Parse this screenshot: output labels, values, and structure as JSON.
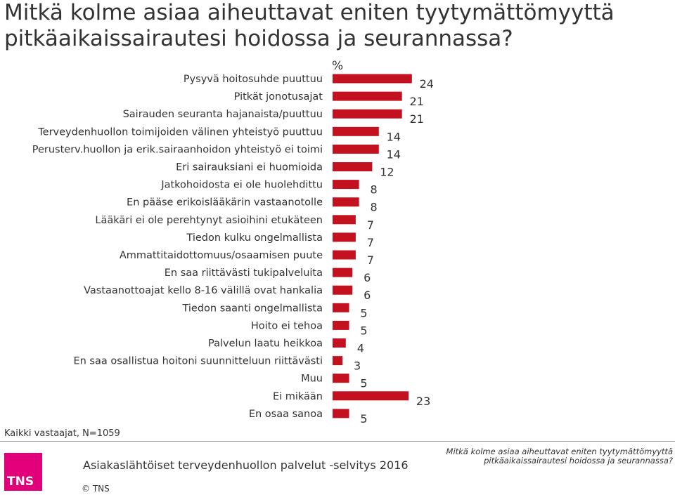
{
  "page": {
    "title": "Mitkä kolme asiaa aiheuttavat eniten tyytymättömyyttä pitkäaikaissairautesi hoidossa ja seurannassa?",
    "unit_label": "%",
    "base_note": "Kaikki vastaajat, N=1059",
    "survey_name": "Asiakaslähtöiset terveydenhuollon palvelut -selvitys 2016",
    "footer_title": "Mitkä kolme asiaa aiheuttavat eniten tyytymättömyyttä pitkäaikaissairautesi hoidossa ja seurannassa?",
    "copyright": "© TNS",
    "logo_text": "TNS"
  },
  "colors": {
    "bar": "#c3111f",
    "logo": "#e2007a"
  },
  "chart_data": {
    "type": "bar",
    "orientation": "horizontal",
    "unit": "%",
    "categories": [
      "Pysyvä hoitosuhde puuttuu",
      "Pitkät jonotusajat",
      "Sairauden seuranta hajanaista/puuttuu",
      "Terveydenhuollon toimijoiden välinen yhteistyö puuttuu",
      "Perusterv.huollon ja erik.sairaanhoidon yhteistyö ei toimi",
      "Eri sairauksiani ei huomioida",
      "Jatkohoidosta ei ole huolehdittu",
      "En pääse erikoislääkärin vastaanotolle",
      "Lääkäri ei ole perehtynyt asioihini etukäteen",
      "Tiedon kulku ongelmallista",
      "Ammattitaidottomuus/osaamisen puute",
      "En saa riittävästi tukipalveluita",
      "Vastaanottoajat kello 8-16 välillä ovat hankalia",
      "Tiedon saanti ongelmallista",
      "Hoito ei tehoa",
      "Palvelun laatu heikkoa",
      "En saa osallistua hoitoni suunnitteluun riittävästi",
      "Muu",
      "Ei mikään",
      "En osaa sanoa"
    ],
    "values": [
      24,
      21,
      21,
      14,
      14,
      12,
      8,
      8,
      7,
      7,
      7,
      6,
      6,
      5,
      5,
      4,
      3,
      5,
      23,
      5
    ],
    "grid": false,
    "legend": "none"
  }
}
